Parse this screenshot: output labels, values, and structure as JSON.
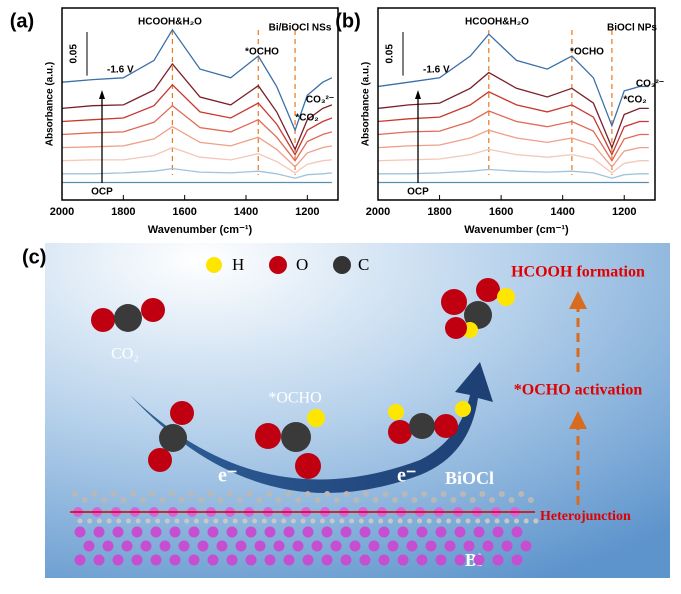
{
  "chart_data": [
    {
      "type": "line",
      "panel": "(a)",
      "sample": "Bi/BiOCl NSs",
      "xlabel": "Wavenumber (cm⁻¹)",
      "ylabel": "Absorbance (a.u.)",
      "xlim": [
        2000,
        1100
      ],
      "xticks": [
        2000,
        1800,
        1600,
        1400,
        1200
      ],
      "ylim": [
        0,
        0.22
      ],
      "scale_bar": 0.05,
      "peak_labels": [
        "HCOOH&H₂O",
        "*OCHO",
        "*CO₂",
        "CO₃²⁻"
      ],
      "markers": [
        1640,
        1360,
        1240
      ],
      "potential_labels": [
        "-1.6 V",
        "OCP"
      ],
      "x": [
        2000,
        1900,
        1800,
        1700,
        1640,
        1550,
        1450,
        1360,
        1300,
        1240,
        1200,
        1150,
        1120
      ],
      "series": [
        {
          "color": "#5b8fb0",
          "values": [
            0.02,
            0.02,
            0.02,
            0.02,
            0.02,
            0.02,
            0.02,
            0.02,
            0.02,
            0.02,
            0.02,
            0.02,
            0.02
          ]
        },
        {
          "color": "#9ec3dc",
          "values": [
            0.03,
            0.03,
            0.031,
            0.033,
            0.036,
            0.032,
            0.031,
            0.033,
            0.03,
            0.025,
            0.029,
            0.03,
            0.031
          ]
        },
        {
          "color": "#f4c7b8",
          "values": [
            0.045,
            0.046,
            0.046,
            0.051,
            0.06,
            0.049,
            0.046,
            0.053,
            0.044,
            0.031,
            0.041,
            0.045,
            0.046
          ]
        },
        {
          "color": "#ef9f88",
          "values": [
            0.06,
            0.061,
            0.062,
            0.07,
            0.084,
            0.066,
            0.062,
            0.072,
            0.058,
            0.038,
            0.054,
            0.06,
            0.062
          ]
        },
        {
          "color": "#e06a55",
          "values": [
            0.075,
            0.077,
            0.078,
            0.089,
            0.108,
            0.083,
            0.078,
            0.092,
            0.072,
            0.045,
            0.067,
            0.075,
            0.078
          ]
        },
        {
          "color": "#c8382e",
          "values": [
            0.09,
            0.092,
            0.094,
            0.108,
            0.132,
            0.101,
            0.094,
            0.111,
            0.087,
            0.052,
            0.08,
            0.09,
            0.094
          ]
        },
        {
          "color": "#7a1f2a",
          "values": [
            0.105,
            0.108,
            0.109,
            0.126,
            0.156,
            0.118,
            0.109,
            0.131,
            0.101,
            0.058,
            0.092,
            0.105,
            0.109
          ]
        },
        {
          "color": "#3a6fa8",
          "values": [
            0.135,
            0.138,
            0.14,
            0.16,
            0.195,
            0.15,
            0.14,
            0.165,
            0.13,
            0.08,
            0.12,
            0.135,
            0.14
          ]
        }
      ]
    },
    {
      "type": "line",
      "panel": "(b)",
      "sample": "BiOCl NPs",
      "xlabel": "Wavenumber (cm⁻¹)",
      "ylabel": "Absorbance (a.u.)",
      "xlim": [
        2000,
        1100
      ],
      "xticks": [
        2000,
        1800,
        1600,
        1400,
        1200
      ],
      "ylim": [
        0,
        0.22
      ],
      "scale_bar": 0.05,
      "peak_labels": [
        "HCOOH&H₂O",
        "*OCHO",
        "*CO₂",
        "CO₃²⁻"
      ],
      "markers": [
        1640,
        1370,
        1240
      ],
      "potential_labels": [
        "-1.6 V",
        "OCP"
      ],
      "x": [
        2000,
        1900,
        1800,
        1700,
        1640,
        1550,
        1450,
        1370,
        1300,
        1240,
        1200,
        1150,
        1120
      ],
      "series": [
        {
          "color": "#5b8fb0",
          "values": [
            0.02,
            0.02,
            0.02,
            0.02,
            0.02,
            0.02,
            0.02,
            0.02,
            0.02,
            0.02,
            0.02,
            0.02,
            0.02
          ]
        },
        {
          "color": "#9ec3dc",
          "values": [
            0.03,
            0.03,
            0.031,
            0.033,
            0.035,
            0.033,
            0.032,
            0.033,
            0.031,
            0.025,
            0.029,
            0.03,
            0.03
          ]
        },
        {
          "color": "#f4c7b8",
          "values": [
            0.045,
            0.046,
            0.047,
            0.052,
            0.058,
            0.052,
            0.049,
            0.052,
            0.047,
            0.031,
            0.042,
            0.045,
            0.045
          ]
        },
        {
          "color": "#ef9f88",
          "values": [
            0.06,
            0.062,
            0.063,
            0.071,
            0.08,
            0.071,
            0.066,
            0.071,
            0.063,
            0.038,
            0.056,
            0.06,
            0.06
          ]
        },
        {
          "color": "#e06a55",
          "values": [
            0.075,
            0.078,
            0.079,
            0.09,
            0.102,
            0.09,
            0.084,
            0.09,
            0.079,
            0.045,
            0.07,
            0.075,
            0.075
          ]
        },
        {
          "color": "#c8382e",
          "values": [
            0.09,
            0.093,
            0.095,
            0.109,
            0.124,
            0.109,
            0.101,
            0.109,
            0.095,
            0.052,
            0.084,
            0.09,
            0.09
          ]
        },
        {
          "color": "#7a1f2a",
          "values": [
            0.105,
            0.109,
            0.111,
            0.128,
            0.146,
            0.128,
            0.118,
            0.128,
            0.111,
            0.06,
            0.098,
            0.105,
            0.105
          ]
        },
        {
          "color": "#3a6fa8",
          "values": [
            0.13,
            0.135,
            0.14,
            0.165,
            0.19,
            0.16,
            0.15,
            0.165,
            0.14,
            0.085,
            0.125,
            0.13,
            0.13
          ]
        }
      ]
    }
  ],
  "diagram": {
    "panel": "(c)",
    "legend": [
      "H",
      "O",
      "C"
    ],
    "co2": "CO₂",
    "ocho": "*OCHO",
    "electron": "e⁻",
    "biocl": "BiOCl",
    "bi": "Bi",
    "junction": "Heterojunction",
    "steps": [
      "HCOOH formation",
      "*OCHO activation"
    ]
  }
}
